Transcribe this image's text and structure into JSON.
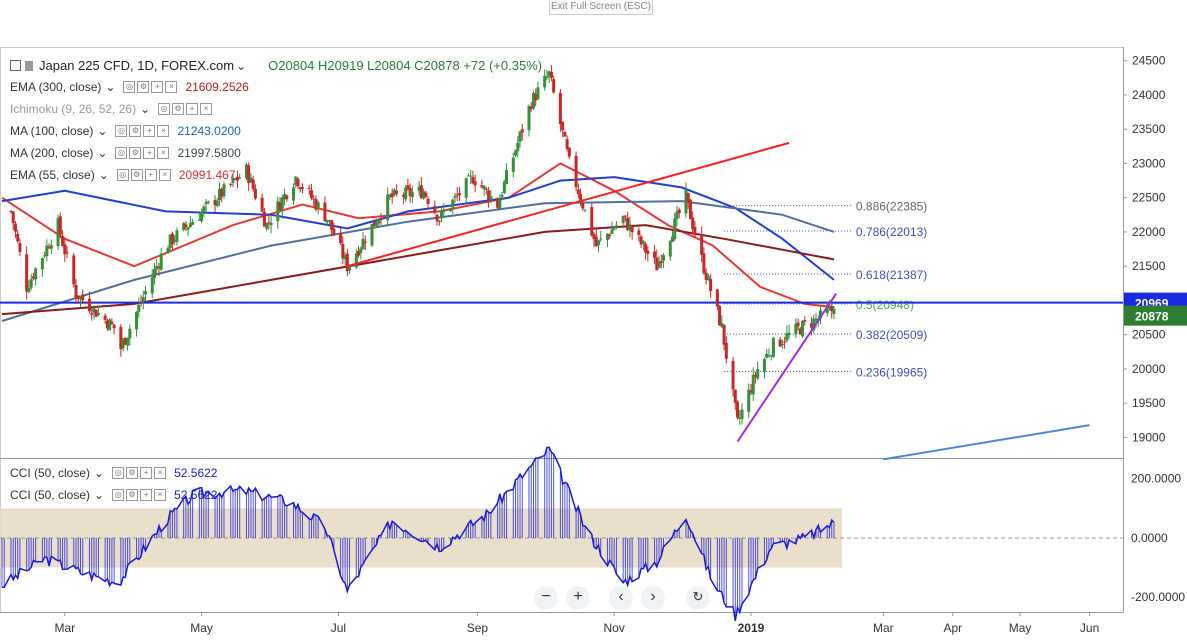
{
  "toolbar": {
    "exit_fullscreen": "Exit Full Screen (ESC)"
  },
  "header": {
    "symbol": "Japan 225 CFD, 1D, FOREX.com",
    "ohlc": "O20804  H20919  L20804  C20878  +72 (+0.35%)",
    "chevron": "⌄"
  },
  "indicators": [
    {
      "label": "EMA (300, close)",
      "value": "21609.2526",
      "color": "#b71c1c"
    },
    {
      "label": "Ichimoku (9, 26, 52, 26)",
      "value": "",
      "color": "#888888"
    },
    {
      "label": "MA (100, close)",
      "value": "21243.0200",
      "color": "#1565c0"
    },
    {
      "label": "MA (200, close)",
      "value": "21997.5800",
      "color": "#37474f"
    },
    {
      "label": "EMA (55, close)",
      "value": "20991.467",
      "color": "#d32f2f"
    }
  ],
  "cci_legend": [
    {
      "label": "CCI (50, close)",
      "value": "52.5622"
    },
    {
      "label": "CCI (50, close)",
      "value": "52.5622"
    }
  ],
  "colors": {
    "up": "#388e3c",
    "down": "#c62828",
    "ema55": "#e53935",
    "ma100": "#1e3fd0",
    "ma200": "#4f6f9f",
    "ema300": "#8b1a1a",
    "trend_red": "#ff2020",
    "trend_purple": "#9b2fd8",
    "trend_blue": "#4a86d8",
    "level_line": "#1a2ae0",
    "cci": "#1a1ad8",
    "cci_band": "#e8dcc4"
  },
  "price_labels": {
    "level": "20969",
    "last": "20878"
  },
  "chart_data": {
    "type": "candlestick",
    "title": "Japan 225 CFD, 1D, FOREX.com",
    "ylim": [
      18700,
      24700
    ],
    "y_ticks": [
      19000,
      19500,
      20000,
      20500,
      21000,
      21500,
      22000,
      22500,
      23000,
      23500,
      24000,
      24500
    ],
    "x_labels": [
      "Mar",
      "May",
      "Jul",
      "Sep",
      "Nov",
      "2019",
      "Mar",
      "Apr",
      "May",
      "Jun"
    ],
    "anchors": [
      {
        "x": "2018-02-05",
        "y": 22300
      },
      {
        "x": "2018-02-12",
        "y": 21200
      },
      {
        "x": "2018-02-26",
        "y": 22100
      },
      {
        "x": "2018-03-06",
        "y": 21100
      },
      {
        "x": "2018-03-23",
        "y": 20600
      },
      {
        "x": "2018-03-26",
        "y": 20300
      },
      {
        "x": "2018-04-15",
        "y": 21800
      },
      {
        "x": "2018-05-21",
        "y": 22900
      },
      {
        "x": "2018-05-30",
        "y": 22100
      },
      {
        "x": "2018-06-12",
        "y": 22800
      },
      {
        "x": "2018-06-26",
        "y": 22200
      },
      {
        "x": "2018-07-05",
        "y": 21500
      },
      {
        "x": "2018-07-24",
        "y": 22500
      },
      {
        "x": "2018-08-08",
        "y": 22600
      },
      {
        "x": "2018-08-15",
        "y": 22200
      },
      {
        "x": "2018-08-30",
        "y": 22800
      },
      {
        "x": "2018-09-10",
        "y": 22400
      },
      {
        "x": "2018-09-25",
        "y": 23900
      },
      {
        "x": "2018-10-03",
        "y": 24300
      },
      {
        "x": "2018-10-12",
        "y": 23000
      },
      {
        "x": "2018-10-24",
        "y": 21800
      },
      {
        "x": "2018-11-05",
        "y": 22200
      },
      {
        "x": "2018-11-20",
        "y": 21500
      },
      {
        "x": "2018-12-03",
        "y": 22500
      },
      {
        "x": "2018-12-10",
        "y": 21600
      },
      {
        "x": "2018-12-19",
        "y": 20600
      },
      {
        "x": "2018-12-26",
        "y": 19200
      },
      {
        "x": "2019-01-04",
        "y": 20000
      },
      {
        "x": "2019-01-11",
        "y": 20350
      },
      {
        "x": "2019-01-23",
        "y": 20600
      },
      {
        "x": "2019-02-01",
        "y": 20750
      },
      {
        "x": "2019-02-07",
        "y": 20878
      }
    ],
    "last": {
      "open": 20804,
      "high": 20919,
      "low": 20804,
      "close": 20878
    },
    "overlays": [
      {
        "name": "EMA (55, close)",
        "points": [
          [
            "2018-02-01",
            22500
          ],
          [
            "2018-03-01",
            21900
          ],
          [
            "2018-04-01",
            21500
          ],
          [
            "2018-05-15",
            22100
          ],
          [
            "2018-06-15",
            22400
          ],
          [
            "2018-07-10",
            22200
          ],
          [
            "2018-08-15",
            22300
          ],
          [
            "2018-09-15",
            22500
          ],
          [
            "2018-10-08",
            23000
          ],
          [
            "2018-11-01",
            22600
          ],
          [
            "2018-11-25",
            22100
          ],
          [
            "2018-12-15",
            21800
          ],
          [
            "2019-01-05",
            21200
          ],
          [
            "2019-01-25",
            20950
          ],
          [
            "2019-02-07",
            20900
          ]
        ]
      },
      {
        "name": "MA (100, close)",
        "points": [
          [
            "2018-02-01",
            22450
          ],
          [
            "2018-03-01",
            22600
          ],
          [
            "2018-04-15",
            22300
          ],
          [
            "2018-06-01",
            22250
          ],
          [
            "2018-07-05",
            22050
          ],
          [
            "2018-08-01",
            22300
          ],
          [
            "2018-09-15",
            22500
          ],
          [
            "2018-10-08",
            22750
          ],
          [
            "2018-11-01",
            22800
          ],
          [
            "2018-12-01",
            22650
          ],
          [
            "2018-12-25",
            22350
          ],
          [
            "2019-01-15",
            21900
          ],
          [
            "2019-02-07",
            21300
          ]
        ]
      },
      {
        "name": "MA (200, close)",
        "points": [
          [
            "2018-02-01",
            20700
          ],
          [
            "2018-04-01",
            21300
          ],
          [
            "2018-06-01",
            21800
          ],
          [
            "2018-08-01",
            22150
          ],
          [
            "2018-10-01",
            22420
          ],
          [
            "2018-12-01",
            22450
          ],
          [
            "2019-01-15",
            22250
          ],
          [
            "2019-02-07",
            22000
          ]
        ]
      },
      {
        "name": "EMA (300, close)",
        "points": [
          [
            "2018-02-01",
            20800
          ],
          [
            "2018-04-01",
            20950
          ],
          [
            "2018-06-01",
            21300
          ],
          [
            "2018-08-01",
            21650
          ],
          [
            "2018-10-01",
            22000
          ],
          [
            "2018-11-15",
            22100
          ],
          [
            "2018-12-20",
            21900
          ],
          [
            "2019-02-07",
            21600
          ]
        ]
      }
    ],
    "trendlines": [
      {
        "color": "trend_red",
        "from": [
          "2018-07-05",
          21500
        ],
        "to": [
          "2019-01-18",
          23300
        ]
      },
      {
        "color": "trend_purple",
        "from": [
          "2018-12-26",
          18940
        ],
        "to": [
          "2019-02-08",
          21100
        ]
      },
      {
        "color": "trend_blue",
        "from": [
          "2019-03-01",
          18680
        ],
        "to": [
          "2019-06-01",
          19180
        ]
      }
    ],
    "levels": [
      {
        "value": 20969,
        "label": "20969"
      }
    ],
    "fibonacci": {
      "from": "2018-12-20",
      "to": "2019-02-15",
      "levels": [
        {
          "ratio": "0.886",
          "value": 22385,
          "label": "0.886(22385)",
          "color": "#666666"
        },
        {
          "ratio": "0.786",
          "value": 22013,
          "label": "0.786(22013)",
          "color": "#3f51b5"
        },
        {
          "ratio": "0.618",
          "value": 21387,
          "label": "0.618(21387)",
          "color": "#3f51b5"
        },
        {
          "ratio": "0.5",
          "value": 20948,
          "label": "0.5(20948)",
          "color": "#4caf50"
        },
        {
          "ratio": "0.382",
          "value": 20509,
          "label": "0.382(20509)",
          "color": "#3f51b5"
        },
        {
          "ratio": "0.236",
          "value": 19965,
          "label": "0.236(19965)",
          "color": "#3f51b5"
        }
      ]
    },
    "cci": {
      "title": "CCI (50, close)",
      "ylim": [
        -250,
        270
      ],
      "y_ticks": [
        "200.0000",
        "0.0000",
        "-200.0000"
      ],
      "y_tick_values": [
        200,
        0,
        -200
      ],
      "band": [
        -100,
        100
      ],
      "anchors": [
        {
          "x": "2018-02-01",
          "y": -160
        },
        {
          "x": "2018-02-20",
          "y": -70
        },
        {
          "x": "2018-03-10",
          "y": -120
        },
        {
          "x": "2018-03-25",
          "y": -150
        },
        {
          "x": "2018-04-15",
          "y": 60
        },
        {
          "x": "2018-04-28",
          "y": 150
        },
        {
          "x": "2018-05-20",
          "y": 160
        },
        {
          "x": "2018-06-10",
          "y": 120
        },
        {
          "x": "2018-06-25",
          "y": 40
        },
        {
          "x": "2018-07-05",
          "y": -180
        },
        {
          "x": "2018-07-25",
          "y": 60
        },
        {
          "x": "2018-08-15",
          "y": -30
        },
        {
          "x": "2018-09-05",
          "y": 80
        },
        {
          "x": "2018-09-22",
          "y": 220
        },
        {
          "x": "2018-10-03",
          "y": 300
        },
        {
          "x": "2018-10-20",
          "y": 20
        },
        {
          "x": "2018-11-05",
          "y": -150
        },
        {
          "x": "2018-11-20",
          "y": -80
        },
        {
          "x": "2018-12-03",
          "y": 80
        },
        {
          "x": "2018-12-15",
          "y": -150
        },
        {
          "x": "2018-12-25",
          "y": -260
        },
        {
          "x": "2019-01-10",
          "y": -30
        },
        {
          "x": "2019-01-25",
          "y": 0
        },
        {
          "x": "2019-02-07",
          "y": 52.5622
        }
      ]
    }
  }
}
